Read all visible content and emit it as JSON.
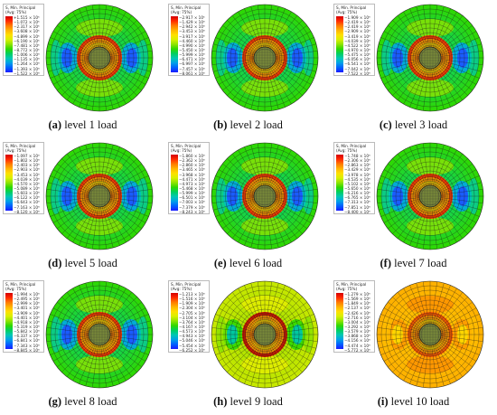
{
  "legend_header": [
    "S, Min. Principal",
    "(Avg: 75%)"
  ],
  "colors": [
    "#d40000",
    "#ff2a00",
    "#ff7a00",
    "#ffb400",
    "#ffe000",
    "#d8f000",
    "#8ee400",
    "#2fd800",
    "#00cf60",
    "#00c8b4",
    "#00a0e8",
    "#0060ff",
    "#1a1aff"
  ],
  "panels": [
    {
      "label": "(a)",
      "text": " level 1 load",
      "theme": "green",
      "legend_values": [
        "+1.515 × 10⁵",
        "−1.072 × 10⁵",
        "−2.317 × 10⁵",
        "−3.608 × 10⁵",
        "−4.899 × 10⁵",
        "−6.190 × 10⁵",
        "−7.481 × 10⁵",
        "−8.772 × 10⁵",
        "−1.006 × 10⁶",
        "−1.135 × 10⁶",
        "−1.264 × 10⁶",
        "−1.393 × 10⁶",
        "−1.522 × 10⁶"
      ]
    },
    {
      "label": "(b)",
      "text": " level 2 load",
      "theme": "green",
      "legend_values": [
        "−2.917 × 10⁵",
        "−1.429 × 10⁶",
        "−2.942 × 10⁶",
        "−3.453 × 10⁶",
        "−3.917 × 10⁶",
        "−4.460 × 10⁶",
        "−4.990 × 10⁶",
        "−5.450 × 10⁶",
        "−5.999 × 10⁶",
        "−6.471 × 10⁶",
        "−6.997 × 10⁶",
        "−7.457 × 10⁶",
        "−8.061 × 10⁶"
      ]
    },
    {
      "label": "(c)",
      "text": " level 3 load",
      "theme": "green",
      "legend_values": [
        "−1.909 × 10⁶",
        "−2.419 × 10⁶",
        "−2.419 × 10⁶",
        "−2.909 × 10⁶",
        "−3.419 × 10⁶",
        "−4.039 × 10⁶",
        "−4.522 × 10⁶",
        "−4.970 × 10⁶",
        "−5.475 × 10⁶",
        "−6.056 × 10⁶",
        "−6.541 × 10⁶",
        "−7.042 × 10⁶",
        "−7.522 × 10⁶"
      ]
    },
    {
      "label": "(d)",
      "text": " level 5 load",
      "theme": "green",
      "legend_values": [
        "−1.097 × 10⁶",
        "−1.802 × 10⁶",
        "−2.403 × 10⁶",
        "−2.903 × 10⁶",
        "−3.453 × 10⁶",
        "−4.039 × 10⁶",
        "−4.570 × 10⁶",
        "−5.089 × 10⁶",
        "−5.603 × 10⁶",
        "−6.122 × 10⁶",
        "−6.643 × 10⁶",
        "−7.163 × 10⁶",
        "−8.120 × 10⁶"
      ]
    },
    {
      "label": "(e)",
      "text": " level 6 load",
      "theme": "green",
      "legend_values": [
        "−1.860 × 10⁶",
        "−2.362 × 10⁶",
        "−2.860 × 10⁶",
        "−3.465 × 10⁶",
        "−3.968 × 10⁶",
        "−4.471 × 10⁶",
        "−4.973 × 10⁶",
        "−5.468 × 10⁶",
        "−5.999 × 10⁶",
        "−6.501 × 10⁶",
        "−7.003 × 10⁶",
        "−7.379 × 10⁶",
        "−8.243 × 10⁶"
      ]
    },
    {
      "label": "(f)",
      "text": " level 7 load",
      "theme": "green",
      "legend_values": [
        "−1.748 × 10⁶",
        "−2.306 × 10⁶",
        "−2.863 × 10⁶",
        "−3.429 × 10⁶",
        "−3.978 × 10⁶",
        "−4.535 × 10⁶",
        "−5.102 × 10⁶",
        "−5.650 × 10⁶",
        "−6.216 × 10⁶",
        "−6.765 × 10⁶",
        "−7.313 × 10⁶",
        "−7.851 × 10⁶",
        "−8.400 × 10⁶"
      ]
    },
    {
      "label": "(g)",
      "text": " level 8 load",
      "theme": "green",
      "legend_values": [
        "−1.994 × 10⁶",
        "−2.495 × 10⁶",
        "−2.999 × 10⁶",
        "−3.401 × 10⁶",
        "−3.909 × 10⁶",
        "−4.401 × 10⁶",
        "−4.918 × 10⁶",
        "−5.319 × 10⁶",
        "−5.842 × 10⁶",
        "−6.337 × 10⁶",
        "−6.841 × 10⁶",
        "−7.343 × 10⁶",
        "−8.845 × 10⁶"
      ]
    },
    {
      "label": "(h)",
      "text": " level 9 load",
      "theme": "yellow",
      "legend_values": [
        "−1.213 × 10⁶",
        "−1.516 × 10⁶",
        "−1.909 × 10⁶",
        "−2.304 × 10⁶",
        "−2.705 × 10⁶",
        "−3.104 × 10⁶",
        "−3.764 × 10⁶",
        "−4.167 × 10⁶",
        "−4.573 × 10⁶",
        "−4.943 × 10⁶",
        "−5.046 × 10⁶",
        "−5.454 × 10⁶",
        "−6.252 × 10⁶"
      ]
    },
    {
      "label": "(i)",
      "text": " level 10 load",
      "theme": "orange",
      "legend_values": [
        "−1.279 × 10⁶",
        "−1.569 × 10⁶",
        "−1.849 × 10⁶",
        "−2.137 × 10⁶",
        "−2.426 × 10⁶",
        "−2.716 × 10⁶",
        "−3.004 × 10⁶",
        "−3.292 × 10⁶",
        "−3.579 × 10⁶",
        "−3.868 × 10⁶",
        "−4.156 × 10⁶",
        "−4.474 × 10⁶",
        "−5.772 × 10⁶"
      ]
    }
  ]
}
